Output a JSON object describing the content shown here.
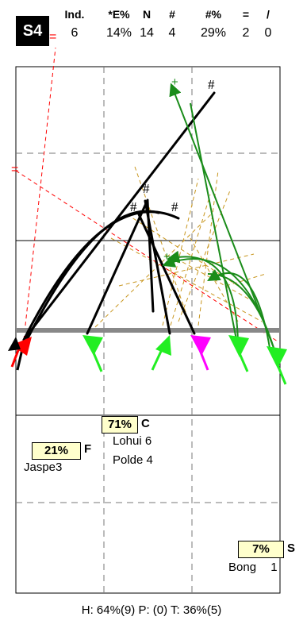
{
  "badge": {
    "label": "S4"
  },
  "stats": {
    "headers": [
      "Ind.",
      "*E%",
      "N",
      "#",
      "#%",
      "=",
      "/"
    ],
    "values": [
      "6",
      "14%",
      "14",
      "4",
      "29%",
      "2",
      "0"
    ]
  },
  "court": {
    "markers": {
      "plus": "+",
      "hash": "#",
      "equals": "="
    }
  },
  "zones": [
    {
      "id": "C",
      "percent": "71%",
      "letter": "C",
      "players": [
        {
          "name": "Lohui",
          "count": "6"
        },
        {
          "name": "Polde",
          "count": "4"
        }
      ]
    },
    {
      "id": "F",
      "percent": "21%",
      "letter": "F",
      "players": [
        {
          "name": "Jaspe",
          "count": "3"
        }
      ]
    },
    {
      "id": "S",
      "percent": "7%",
      "letter": "S",
      "players": [
        {
          "name": "Bong",
          "count": "1"
        }
      ]
    }
  ],
  "footer": {
    "text": "H: 64%(9)  P: (0)  T: 36%(5)"
  },
  "colors": {
    "black": "#000000",
    "green": "#1a8c1a",
    "red": "#ff0000",
    "magenta": "#ff00ff",
    "bright_green": "#22ee22",
    "orange_dash": "#c8961e",
    "net": "#888888",
    "pct_bg": "#ffffcc"
  }
}
